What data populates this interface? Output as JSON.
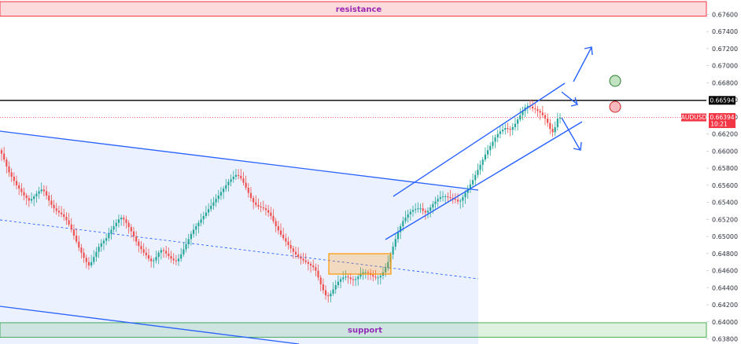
{
  "chart_data": {
    "type": "candlestick",
    "symbol": "AUDUSD",
    "y_axis": {
      "position": "right",
      "range": [
        0.6375,
        0.6776
      ],
      "tick_labels": [
        "0.67600",
        "0.67400",
        "0.67200",
        "0.67000",
        "0.66800",
        "0.66600",
        "0.66400",
        "0.66200",
        "0.66000",
        "0.65800",
        "0.65600",
        "0.65400",
        "0.65200",
        "0.65000",
        "0.64800",
        "0.64600",
        "0.64400",
        "0.64200",
        "0.64000",
        "0.63800"
      ]
    },
    "zones": [
      {
        "label": "resistance",
        "low": 0.6758,
        "high": 0.6775,
        "color": "#f23645",
        "text_color": "#9c27b0"
      },
      {
        "label": "support",
        "low": 0.6382,
        "high": 0.6399,
        "color": "#4caf50",
        "text_color": "#9c27b0"
      }
    ],
    "key_level": {
      "value": "0.66594",
      "price": 0.66594,
      "color": "#000000"
    },
    "current_price": {
      "symbol": "AUDUSD",
      "value": "0.66394",
      "countdown": "10:21",
      "price": 0.66394,
      "color": "#f23645"
    },
    "closes": [
      0.6597,
      0.659,
      0.6582,
      0.6575,
      0.657,
      0.6565,
      0.656,
      0.6556,
      0.6552,
      0.6548,
      0.6545,
      0.6542,
      0.6544,
      0.6547,
      0.655,
      0.6553,
      0.6555,
      0.6553,
      0.6548,
      0.6542,
      0.6537,
      0.6533,
      0.653,
      0.6528,
      0.6526,
      0.6523,
      0.6519,
      0.6514,
      0.6508,
      0.6501,
      0.6494,
      0.6487,
      0.6481,
      0.6475,
      0.647,
      0.6466,
      0.647,
      0.6476,
      0.6482,
      0.6488,
      0.6492,
      0.6495,
      0.6498,
      0.6503,
      0.6508,
      0.6512,
      0.6516,
      0.652,
      0.6522,
      0.652,
      0.6516,
      0.6511,
      0.6506,
      0.65,
      0.6494,
      0.6489,
      0.6485,
      0.6481,
      0.6478,
      0.6474,
      0.6471,
      0.6472,
      0.6476,
      0.6481,
      0.6484,
      0.6483,
      0.648,
      0.6477,
      0.6474,
      0.6472,
      0.6471,
      0.6474,
      0.6479,
      0.6485,
      0.6491,
      0.6497,
      0.6503,
      0.6508,
      0.6512,
      0.6516,
      0.652,
      0.6524,
      0.6528,
      0.6532,
      0.6536,
      0.654,
      0.6544,
      0.6548,
      0.6552,
      0.6556,
      0.656,
      0.6564,
      0.6567,
      0.657,
      0.6572,
      0.6571,
      0.6568,
      0.6563,
      0.6557,
      0.6551,
      0.6545,
      0.654,
      0.6537,
      0.6535,
      0.6534,
      0.6533,
      0.6531,
      0.6528,
      0.6524,
      0.6518,
      0.6512,
      0.6507,
      0.6502,
      0.6498,
      0.6494,
      0.649,
      0.6486,
      0.6482,
      0.6479,
      0.6476,
      0.6474,
      0.6472,
      0.647,
      0.6468,
      0.6466,
      0.6464,
      0.646,
      0.6452,
      0.6444,
      0.6437,
      0.6431,
      0.643,
      0.6433,
      0.6438,
      0.6443,
      0.6447,
      0.645,
      0.6452,
      0.6453,
      0.6452,
      0.645,
      0.6449,
      0.645,
      0.6453,
      0.6456,
      0.6458,
      0.6458,
      0.6457,
      0.6455,
      0.6453,
      0.6452,
      0.6452,
      0.6454,
      0.6458,
      0.6463,
      0.647,
      0.6479,
      0.6488,
      0.6497,
      0.6505,
      0.6512,
      0.6518,
      0.6522,
      0.6526,
      0.6529,
      0.6531,
      0.6532,
      0.6533,
      0.6533,
      0.653,
      0.6528,
      0.653,
      0.6534,
      0.6538,
      0.6541,
      0.6544,
      0.6546,
      0.6547,
      0.6547,
      0.6546,
      0.6545,
      0.6544,
      0.6543,
      0.6541,
      0.6542,
      0.6546,
      0.6551,
      0.6556,
      0.6561,
      0.6566,
      0.6572,
      0.6578,
      0.6584,
      0.659,
      0.6596,
      0.6601,
      0.6606,
      0.6611,
      0.6616,
      0.662,
      0.6623,
      0.6625,
      0.6627,
      0.6626,
      0.6625,
      0.6628,
      0.6632,
      0.6637,
      0.6642,
      0.6647,
      0.6651,
      0.6653,
      0.6652,
      0.665,
      0.6649,
      0.6647,
      0.6645,
      0.6642,
      0.6638,
      0.6633,
      0.6626,
      0.6622,
      0.6628,
      0.6638,
      0.6639
    ]
  },
  "annotations": {
    "channel_band": "descending",
    "rising_channel": "ascending",
    "consolidation_box": "range",
    "bullish_target": "green-circle",
    "bearish_target": "red-circle"
  }
}
